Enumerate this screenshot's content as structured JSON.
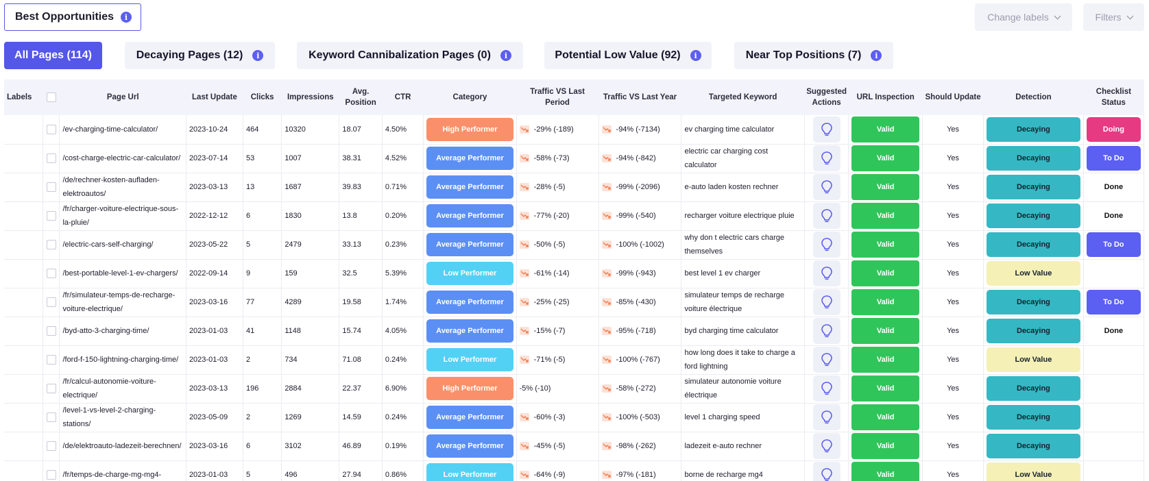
{
  "header": {
    "title": "Best Opportunities",
    "change_labels": "Change labels",
    "filters": "Filters"
  },
  "tabs": [
    {
      "label": "All Pages (114)",
      "active": true,
      "info": false
    },
    {
      "label": "Decaying Pages (12)",
      "active": false,
      "info": true
    },
    {
      "label": "Keyword Cannibalization Pages (0)",
      "active": false,
      "info": true
    },
    {
      "label": "Potential Low Value (92)",
      "active": false,
      "info": true
    },
    {
      "label": "Near Top Positions (7)",
      "active": false,
      "info": true
    }
  ],
  "columns": {
    "labels": "Labels",
    "page_url": "Page Url",
    "last_update": "Last Update",
    "clicks": "Clicks",
    "impressions": "Impressions",
    "avg_position": "Avg. Position",
    "ctr": "CTR",
    "category": "Category",
    "traffic_period": "Traffic VS Last Period",
    "traffic_year": "Traffic VS Last Year",
    "keyword": "Targeted Keyword",
    "actions": "Suggested Actions",
    "url_inspection": "URL Inspection",
    "should_update": "Should Update",
    "detection": "Detection",
    "checklist": "Checklist Status"
  },
  "colors": {
    "accent": "#5457e8",
    "high_performer": "#f9906b",
    "average_performer": "#5c8ff4",
    "low_performer": "#53d1f5",
    "valid": "#30c55a",
    "decaying": "#35b8c4",
    "low_value": "#f5f0b6",
    "doing": "#e63a83",
    "todo": "#5b5ff2"
  },
  "rows": [
    {
      "url": "/ev-charging-time-calculator/",
      "date": "2023-10-24",
      "clicks": "464",
      "impr": "10320",
      "pos": "18.07",
      "ctr": "4.50%",
      "cat": "High Performer",
      "cat_type": "high",
      "tp": "-29% (-189)",
      "tp_icon": true,
      "ty": "-94% (-7134)",
      "ty_icon": true,
      "kw": "ev charging time calculator",
      "insp": "Valid",
      "upd": "Yes",
      "det": "Decaying",
      "det_type": "dec",
      "status": "Doing",
      "status_type": "doing"
    },
    {
      "url": "/cost-charge-electric-car-calculator/",
      "date": "2023-07-14",
      "clicks": "53",
      "impr": "1007",
      "pos": "38.31",
      "ctr": "4.52%",
      "cat": "Average Performer",
      "cat_type": "avg",
      "tp": "-58% (-73)",
      "tp_icon": true,
      "ty": "-94% (-842)",
      "ty_icon": true,
      "kw": "electric car charging cost calculator",
      "insp": "Valid",
      "upd": "Yes",
      "det": "Decaying",
      "det_type": "dec",
      "status": "To Do",
      "status_type": "todo"
    },
    {
      "url": "/de/rechner-kosten-aufladen-elektroautos/",
      "date": "2023-03-13",
      "clicks": "13",
      "impr": "1687",
      "pos": "39.83",
      "ctr": "0.71%",
      "cat": "Average Performer",
      "cat_type": "avg",
      "tp": "-28% (-5)",
      "tp_icon": true,
      "ty": "-99% (-2096)",
      "ty_icon": true,
      "kw": "e-auto laden kosten rechner",
      "insp": "Valid",
      "upd": "Yes",
      "det": "Decaying",
      "det_type": "dec",
      "status": "Done",
      "status_type": "done"
    },
    {
      "url": "/fr/charger-voiture-electrique-sous-la-pluie/",
      "date": "2022-12-12",
      "clicks": "6",
      "impr": "1830",
      "pos": "13.8",
      "ctr": "0.20%",
      "cat": "Average Performer",
      "cat_type": "avg",
      "tp": "-77% (-20)",
      "tp_icon": true,
      "ty": "-99% (-540)",
      "ty_icon": true,
      "kw": "recharger voiture electrique pluie",
      "insp": "Valid",
      "upd": "Yes",
      "det": "Decaying",
      "det_type": "dec",
      "status": "Done",
      "status_type": "done"
    },
    {
      "url": "/electric-cars-self-charging/",
      "date": "2023-05-22",
      "clicks": "5",
      "impr": "2479",
      "pos": "33.13",
      "ctr": "0.23%",
      "cat": "Average Performer",
      "cat_type": "avg",
      "tp": "-50% (-5)",
      "tp_icon": true,
      "ty": "-100% (-1002)",
      "ty_icon": true,
      "kw": "why don t electric cars charge themselves",
      "insp": "Valid",
      "upd": "Yes",
      "det": "Decaying",
      "det_type": "dec",
      "status": "To Do",
      "status_type": "todo"
    },
    {
      "url": "/best-portable-level-1-ev-chargers/",
      "date": "2022-09-14",
      "clicks": "9",
      "impr": "159",
      "pos": "32.5",
      "ctr": "5.39%",
      "cat": "Low Performer",
      "cat_type": "low",
      "tp": "-61% (-14)",
      "tp_icon": true,
      "ty": "-99% (-943)",
      "ty_icon": true,
      "kw": "best level 1 ev charger",
      "insp": "Valid",
      "upd": "Yes",
      "det": "Low Value",
      "det_type": "low",
      "status": "",
      "status_type": "none"
    },
    {
      "url": "/fr/simulateur-temps-de-recharge-voiture-electrique/",
      "date": "2023-03-16",
      "clicks": "77",
      "impr": "4289",
      "pos": "19.58",
      "ctr": "1.74%",
      "cat": "Average Performer",
      "cat_type": "avg",
      "tp": "-25% (-25)",
      "tp_icon": true,
      "ty": "-85% (-430)",
      "ty_icon": true,
      "kw": "simulateur temps de recharge voiture électrique",
      "insp": "Valid",
      "upd": "Yes",
      "det": "Decaying",
      "det_type": "dec",
      "status": "To Do",
      "status_type": "todo"
    },
    {
      "url": "/byd-atto-3-charging-time/",
      "date": "2023-01-03",
      "clicks": "41",
      "impr": "1148",
      "pos": "15.74",
      "ctr": "4.05%",
      "cat": "Average Performer",
      "cat_type": "avg",
      "tp": "-15% (-7)",
      "tp_icon": true,
      "ty": "-95% (-718)",
      "ty_icon": true,
      "kw": "byd charging time calculator",
      "insp": "Valid",
      "upd": "Yes",
      "det": "Decaying",
      "det_type": "dec",
      "status": "Done",
      "status_type": "done"
    },
    {
      "url": "/ford-f-150-lightning-charging-time/",
      "date": "2023-01-03",
      "clicks": "2",
      "impr": "734",
      "pos": "71.08",
      "ctr": "0.24%",
      "cat": "Low Performer",
      "cat_type": "low",
      "tp": "-71% (-5)",
      "tp_icon": true,
      "ty": "-100% (-767)",
      "ty_icon": true,
      "kw": "how long does it take to charge a ford lightning",
      "insp": "Valid",
      "upd": "Yes",
      "det": "Low Value",
      "det_type": "low",
      "status": "",
      "status_type": "none"
    },
    {
      "url": "/fr/calcul-autonomie-voiture-electrique/",
      "date": "2023-03-13",
      "clicks": "196",
      "impr": "2884",
      "pos": "22.37",
      "ctr": "6.90%",
      "cat": "High Performer",
      "cat_type": "high",
      "tp": "-5% (-10)",
      "tp_icon": false,
      "ty": "-58% (-272)",
      "ty_icon": true,
      "kw": "simulateur autonomie voiture électrique",
      "insp": "Valid",
      "upd": "Yes",
      "det": "Decaying",
      "det_type": "dec",
      "status": "",
      "status_type": "none"
    },
    {
      "url": "/level-1-vs-level-2-charging-stations/",
      "date": "2023-05-09",
      "clicks": "2",
      "impr": "1269",
      "pos": "14.59",
      "ctr": "0.24%",
      "cat": "Average Performer",
      "cat_type": "avg",
      "tp": "-60% (-3)",
      "tp_icon": true,
      "ty": "-100% (-503)",
      "ty_icon": true,
      "kw": "level 1 charging speed",
      "insp": "Valid",
      "upd": "Yes",
      "det": "Decaying",
      "det_type": "dec",
      "status": "",
      "status_type": "none"
    },
    {
      "url": "/de/elektroauto-ladezeit-berechnen/",
      "date": "2023-03-16",
      "clicks": "6",
      "impr": "3102",
      "pos": "46.89",
      "ctr": "0.19%",
      "cat": "Average Performer",
      "cat_type": "avg",
      "tp": "-45% (-5)",
      "tp_icon": true,
      "ty": "-98% (-262)",
      "ty_icon": true,
      "kw": "ladezeit e-auto rechner",
      "insp": "Valid",
      "upd": "Yes",
      "det": "Decaying",
      "det_type": "dec",
      "status": "",
      "status_type": "none"
    },
    {
      "url": "/fr/temps-de-charge-mg-mg4-",
      "date": "2023-01-03",
      "clicks": "5",
      "impr": "496",
      "pos": "27.94",
      "ctr": "0.86%",
      "cat": "Low Performer",
      "cat_type": "low",
      "tp": "-64% (-9)",
      "tp_icon": true,
      "ty": "-97% (-181)",
      "ty_icon": true,
      "kw": "borne de recharge mg4",
      "insp": "Valid",
      "upd": "Yes",
      "det": "Low Value",
      "det_type": "low",
      "status": "",
      "status_type": "none"
    }
  ]
}
